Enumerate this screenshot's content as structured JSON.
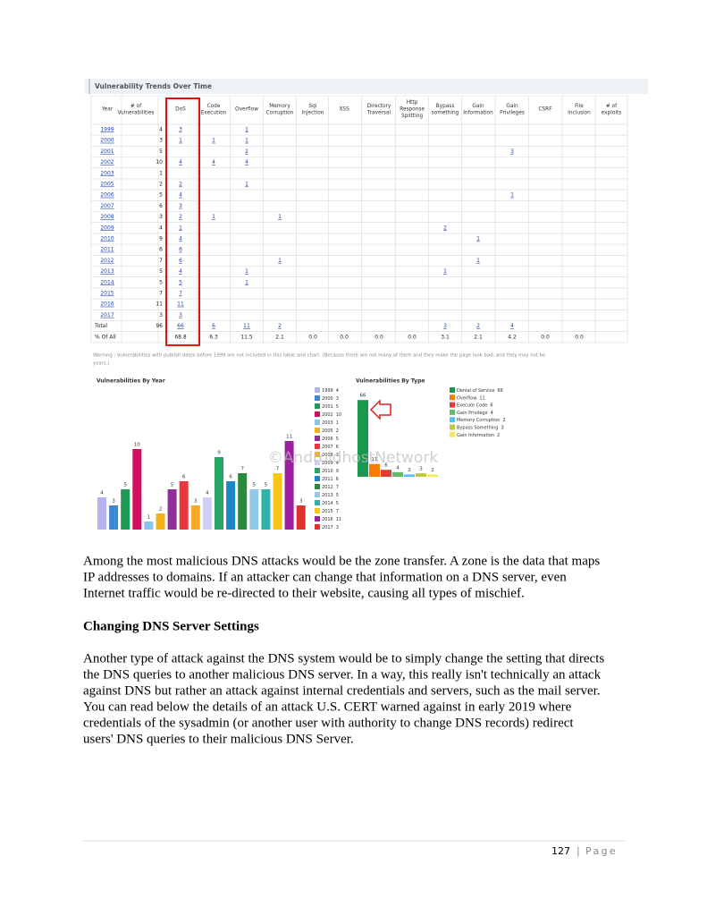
{
  "table": {
    "title": "Vulnerability Trends Over Time",
    "headers": [
      [
        "Year"
      ],
      [
        "# of",
        "Vulnerabilities"
      ],
      [
        "DoS"
      ],
      [
        "Code",
        "Execution"
      ],
      [
        "Overflow"
      ],
      [
        "Memory",
        "Corruption"
      ],
      [
        "Sql",
        "Injection"
      ],
      [
        "XSS"
      ],
      [
        "Directory",
        "Traversal"
      ],
      [
        "Http",
        "Response",
        "Splitting"
      ],
      [
        "Bypass",
        "something"
      ],
      [
        "Gain",
        "Information"
      ],
      [
        "Gain",
        "Privileges"
      ],
      [
        "CSRF"
      ],
      [
        "File",
        "Inclusion"
      ],
      [
        "# of",
        "exploits"
      ]
    ],
    "rows": [
      [
        1999,
        4,
        3,
        null,
        1,
        null,
        null,
        null,
        null,
        null,
        null,
        null,
        null,
        null,
        null,
        null
      ],
      [
        2000,
        3,
        1,
        1,
        1,
        null,
        null,
        null,
        null,
        null,
        null,
        null,
        null,
        null,
        null,
        null
      ],
      [
        2001,
        5,
        null,
        null,
        2,
        null,
        null,
        null,
        null,
        null,
        null,
        null,
        3,
        null,
        null,
        null
      ],
      [
        2002,
        10,
        4,
        4,
        4,
        null,
        null,
        null,
        null,
        null,
        null,
        null,
        null,
        null,
        null,
        null
      ],
      [
        2003,
        1,
        null,
        null,
        null,
        null,
        null,
        null,
        null,
        null,
        null,
        null,
        null,
        null,
        null,
        null
      ],
      [
        2005,
        2,
        2,
        null,
        1,
        null,
        null,
        null,
        null,
        null,
        null,
        null,
        null,
        null,
        null,
        null
      ],
      [
        2006,
        5,
        4,
        null,
        null,
        null,
        null,
        null,
        null,
        null,
        null,
        null,
        1,
        null,
        null,
        null
      ],
      [
        2007,
        6,
        3,
        null,
        null,
        null,
        null,
        null,
        null,
        null,
        null,
        null,
        null,
        null,
        null,
        null
      ],
      [
        2008,
        3,
        2,
        1,
        null,
        1,
        null,
        null,
        null,
        null,
        null,
        null,
        null,
        null,
        null,
        null
      ],
      [
        2009,
        4,
        1,
        null,
        null,
        null,
        null,
        null,
        null,
        null,
        2,
        null,
        null,
        null,
        null,
        null
      ],
      [
        2010,
        9,
        4,
        null,
        null,
        null,
        null,
        null,
        null,
        null,
        null,
        1,
        null,
        null,
        null,
        null
      ],
      [
        2011,
        6,
        6,
        null,
        null,
        null,
        null,
        null,
        null,
        null,
        null,
        null,
        null,
        null,
        null,
        null
      ],
      [
        2012,
        7,
        6,
        null,
        null,
        1,
        null,
        null,
        null,
        null,
        null,
        1,
        null,
        null,
        null,
        null
      ],
      [
        2013,
        5,
        4,
        null,
        1,
        null,
        null,
        null,
        null,
        null,
        1,
        null,
        null,
        null,
        null,
        null
      ],
      [
        2014,
        5,
        5,
        null,
        1,
        null,
        null,
        null,
        null,
        null,
        null,
        null,
        null,
        null,
        null,
        null
      ],
      [
        2015,
        7,
        7,
        null,
        null,
        null,
        null,
        null,
        null,
        null,
        null,
        null,
        null,
        null,
        null,
        null
      ],
      [
        2016,
        11,
        11,
        null,
        null,
        null,
        null,
        null,
        null,
        null,
        null,
        null,
        null,
        null,
        null,
        null
      ],
      [
        2017,
        3,
        3,
        null,
        null,
        null,
        null,
        null,
        null,
        null,
        null,
        null,
        null,
        null,
        null,
        null
      ],
      [
        "Total",
        96,
        66,
        6,
        11,
        2,
        null,
        null,
        null,
        null,
        3,
        2,
        4,
        null,
        null,
        null
      ],
      [
        "% Of All",
        null,
        "68.8",
        "6.3",
        "11.5",
        "2.1",
        "0.0",
        "0.0",
        "0.0",
        "0.0",
        "3.1",
        "2.1",
        "4.2",
        "0.0",
        "0.0",
        null
      ]
    ],
    "warning": [
      "Warning : Vulnerabilities with publish dates before 1999 are not included in this table and chart. (Because there are not many of them and they make the page look bad; and they may not be",
      "years.)"
    ]
  },
  "charts": [
    {
      "type": "bar",
      "title": "Vulnerabilities By Year",
      "categories": [
        "1999",
        "2000",
        "2001",
        "2002",
        "2003",
        "2005",
        "2006",
        "2007",
        "2008",
        "2009",
        "2010",
        "2011",
        "2012",
        "2013",
        "2014",
        "2015",
        "2016",
        "2017"
      ],
      "values": [
        4,
        3,
        5,
        10,
        1,
        2,
        5,
        6,
        3,
        4,
        9,
        6,
        7,
        5,
        5,
        7,
        11,
        3
      ],
      "colors": [
        "#b4b4ee",
        "#3f86d8",
        "#1f9b55",
        "#d0105e",
        "#86c3ee",
        "#f5b21c",
        "#8e2f9c",
        "#e8383d",
        "#f7a928",
        "#cfcff4",
        "#27a567",
        "#1c86c9",
        "#2a8a3c",
        "#92c9ea",
        "#2fb3a8",
        "#f5c518",
        "#9b1f9e",
        "#e23030"
      ]
    },
    {
      "type": "bar",
      "title": "Vulnerabilities By Type",
      "categories": [
        "Denial of Service",
        "Overflow",
        "Execute Code",
        "Gain Privilege",
        "Memory Corruption",
        "Bypass Something",
        "Gain Information"
      ],
      "values": [
        66,
        11,
        6,
        4,
        2,
        3,
        2
      ],
      "colors": [
        "#1a9850",
        "#f57c00",
        "#e53935",
        "#66bb6a",
        "#4fc3f7",
        "#c0ca33",
        "#f2e85a"
      ]
    }
  ],
  "watermark": "©AndroidhostNetwork",
  "paragraphs": [
    {
      "lines": [
        "Among the most malicious DNS attacks would be the zone transfer. A zone is the data that maps",
        "IP addresses to domains. If an attacker can change that information on a DNS server, even",
        "Internet traffic would be re-directed to their website, causing all types of mischief."
      ]
    },
    {
      "lines": [
        "Another type of attack against the DNS system would be to simply change the setting that directs",
        "the DNS queries to another malicious DNS server. In a way, this really isn't technically an attack",
        "against DNS but rather an attack against internal credentials and servers, such as the mail server.",
        "You can read below the details of an attack U.S. CERT warned against in early 2019 where",
        "credentials of the sysadmin (or another user with authority to change DNS records) redirect",
        "users' DNS queries to their malicious DNS Server."
      ]
    }
  ],
  "heading": "Changing DNS Server Settings",
  "footer": {
    "number": "127",
    "separator": "|",
    "label": "Page"
  }
}
